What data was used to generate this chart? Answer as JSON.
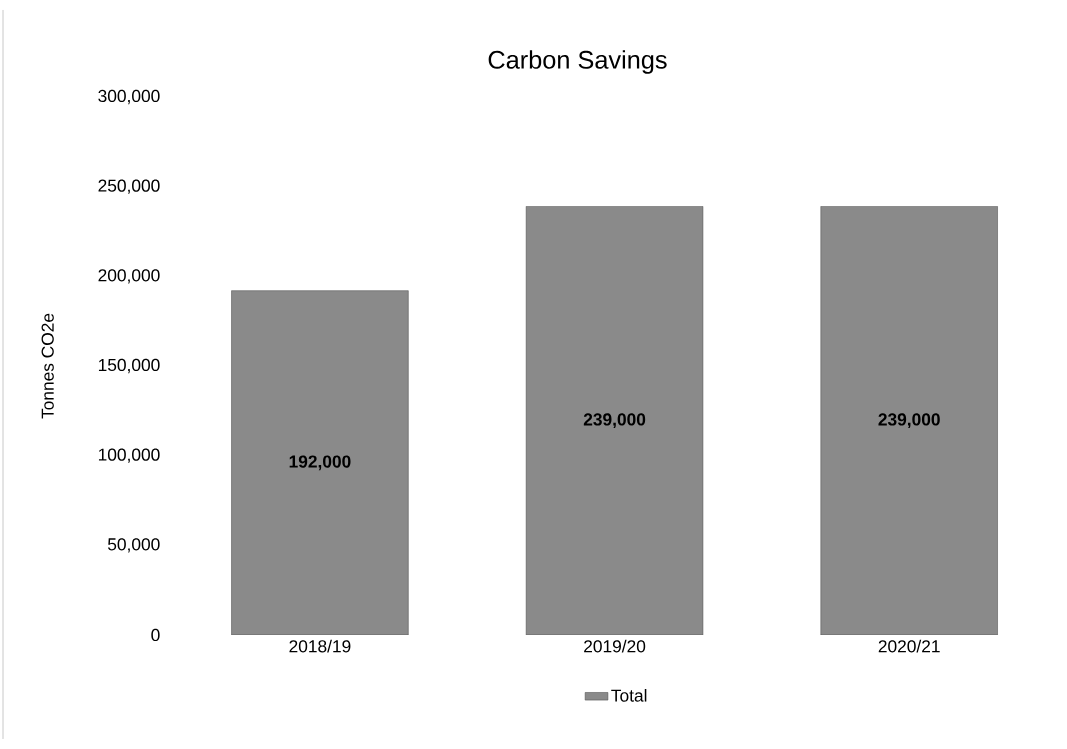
{
  "chart_data": {
    "type": "bar",
    "title": "Carbon Savings",
    "ylabel": "Tonnes CO2e",
    "categories": [
      "2018/19",
      "2019/20",
      "2020/21"
    ],
    "series": [
      {
        "name": "Total",
        "color": "#8a8a8a",
        "values": [
          192000,
          239000,
          239000
        ],
        "value_labels": [
          "192,000",
          "239,000",
          "239,000"
        ]
      }
    ],
    "ylim": [
      0,
      300000
    ],
    "yticks": [
      0,
      {
        "value": 50000,
        "label": "50,000"
      },
      {
        "value": 100000,
        "label": "100,000"
      },
      {
        "value": 150000,
        "label": "150,000"
      },
      {
        "value": 200000,
        "label": "200,000"
      },
      {
        "value": 250000,
        "label": "250,000"
      },
      {
        "value": 300000,
        "label": "300,000"
      }
    ],
    "grid": false,
    "legend": "bottom"
  }
}
